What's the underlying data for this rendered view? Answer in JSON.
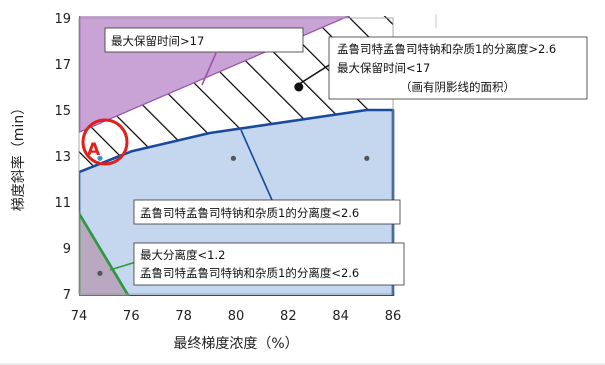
{
  "chart_data": {
    "type": "area",
    "xlabel": "最终梯度浓度（%）",
    "ylabel": "梯度斜率（min）",
    "xlim": [
      74,
      86
    ],
    "ylim": [
      7,
      19
    ],
    "x_ticks": [
      "74",
      "76",
      "78",
      "80",
      "82",
      "84",
      "86"
    ],
    "y_ticks": [
      "7",
      "9",
      "11",
      "13",
      "15",
      "17",
      "19"
    ],
    "grid": true,
    "regions": [
      {
        "name": "retention-gt-17",
        "color": "#c9a3d6",
        "edge_color": "#9a55b0",
        "points": [
          [
            74,
            19.2
          ],
          [
            84.6,
            19.2
          ],
          [
            74,
            14
          ]
        ]
      },
      {
        "name": "hatched-feasible",
        "color": "#ffffff",
        "points": [
          [
            74,
            14
          ],
          [
            84.6,
            19.2
          ],
          [
            86,
            19.2
          ],
          [
            86,
            15
          ],
          [
            85,
            15
          ],
          [
            79,
            14
          ],
          [
            76,
            13.2
          ],
          [
            74,
            12.3
          ]
        ]
      },
      {
        "name": "resolution-lt-2.6",
        "color": "#c5d6ef",
        "edge_color": "#1a4a9c",
        "points": [
          [
            74,
            12.3
          ],
          [
            76,
            13.2
          ],
          [
            79,
            14
          ],
          [
            85,
            15
          ],
          [
            86,
            15
          ],
          [
            86,
            6.9
          ],
          [
            75.9,
            6.9
          ],
          [
            74,
            10.5
          ]
        ]
      },
      {
        "name": "resolution-lt-1.2",
        "color": "#b9a8c0",
        "edge_color": "#2e9a3e",
        "points": [
          [
            74,
            10.5
          ],
          [
            75.9,
            6.9
          ],
          [
            74,
            6.9
          ]
        ]
      }
    ],
    "points": [
      {
        "x": 74.8,
        "y": 12.9,
        "color": "#3a8fd0"
      },
      {
        "x": 79.9,
        "y": 12.9,
        "color": "#555555"
      },
      {
        "x": 85.0,
        "y": 12.9,
        "color": "#555555"
      },
      {
        "x": 74.8,
        "y": 7.9,
        "color": "#555555"
      },
      {
        "x": 82.4,
        "y": 16.0,
        "color": "#111111"
      }
    ],
    "marker": {
      "label": "A",
      "x": 74.7,
      "y": 13.4,
      "color": "#e0201a"
    },
    "annotations": [
      {
        "lines": [
          "最大保留时间>17"
        ]
      },
      {
        "lines": [
          "孟鲁司特孟鲁司特钠和杂质1的分离度>2.6",
          "最大保留时间<17",
          "（画有阴影线的面积）"
        ]
      },
      {
        "lines": [
          "孟鲁司特孟鲁司特钠和杂质1的分离度<2.6"
        ]
      },
      {
        "lines": [
          "最大分离度<1.2",
          "孟鲁司特孟鲁司特钠和杂质1的分离度<2.6"
        ]
      }
    ]
  }
}
